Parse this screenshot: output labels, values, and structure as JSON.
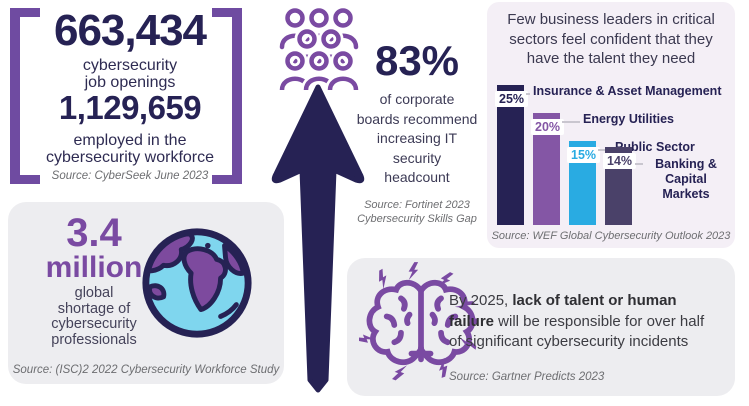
{
  "colors": {
    "navy": "#262254",
    "purple": "#7a4aa2",
    "bracket_purple": "#6f4ba1",
    "bar_purple": "#8456a5",
    "cyan": "#29abe2",
    "slate": "#4a4169",
    "panel_bg": "#f4eff6",
    "card_bg": "#ededf0",
    "source_gray": "#6d6e71"
  },
  "top_left": {
    "openings_value": "663,434",
    "openings_label_lines": [
      "cybersecurity",
      "job openings"
    ],
    "employed_value": "1,129,659",
    "employed_label_lines": [
      "employed in the",
      "cybersecurity workforce"
    ],
    "source": "Source: CyberSeek June 2023"
  },
  "center": {
    "headline_value": "83%",
    "headline_lines": [
      "of corporate",
      "boards recommend",
      "increasing IT",
      "security",
      "headcount"
    ],
    "source_lines": [
      "Source: Fortinet 2023",
      "Cybersecurity Skills Gap"
    ]
  },
  "chart_data": {
    "type": "bar",
    "categories": [
      "Insurance & Asset Management",
      "Energy Utilities",
      "Public Sector",
      "Banking & Capital Markets"
    ],
    "values": [
      25,
      20,
      15,
      14
    ],
    "value_labels": [
      "25%",
      "20%",
      "15%",
      "14%"
    ],
    "bar_colors": [
      "#262254",
      "#8456a5",
      "#29abe2",
      "#4a4169"
    ],
    "title": "Few business leaders in critical sectors feel confident that they have the talent they need",
    "title_lines": [
      "Few business leaders in critical",
      "sectors feel confident that they",
      "have the talent they need"
    ],
    "source": "Source: WEF Global Cybersecurity Outlook 2023",
    "xlabel": "",
    "ylabel": "",
    "ylim": [
      0,
      25
    ],
    "grid": false,
    "legend": "none"
  },
  "shortage_card": {
    "value": "3.4",
    "unit": "million",
    "label_lines": [
      "global",
      "shortage of",
      "cybersecurity",
      "professionals"
    ],
    "source": "Source: (ISC)2 2022 Cybersecurity Workforce Study"
  },
  "prediction_card": {
    "text_prefix": "By 2025, ",
    "text_bold": "lack of talent or human failure",
    "text_suffix": " will be responsible for over half of significant cybersecurity incidents",
    "source": "Source: Gartner Predicts 2023"
  }
}
